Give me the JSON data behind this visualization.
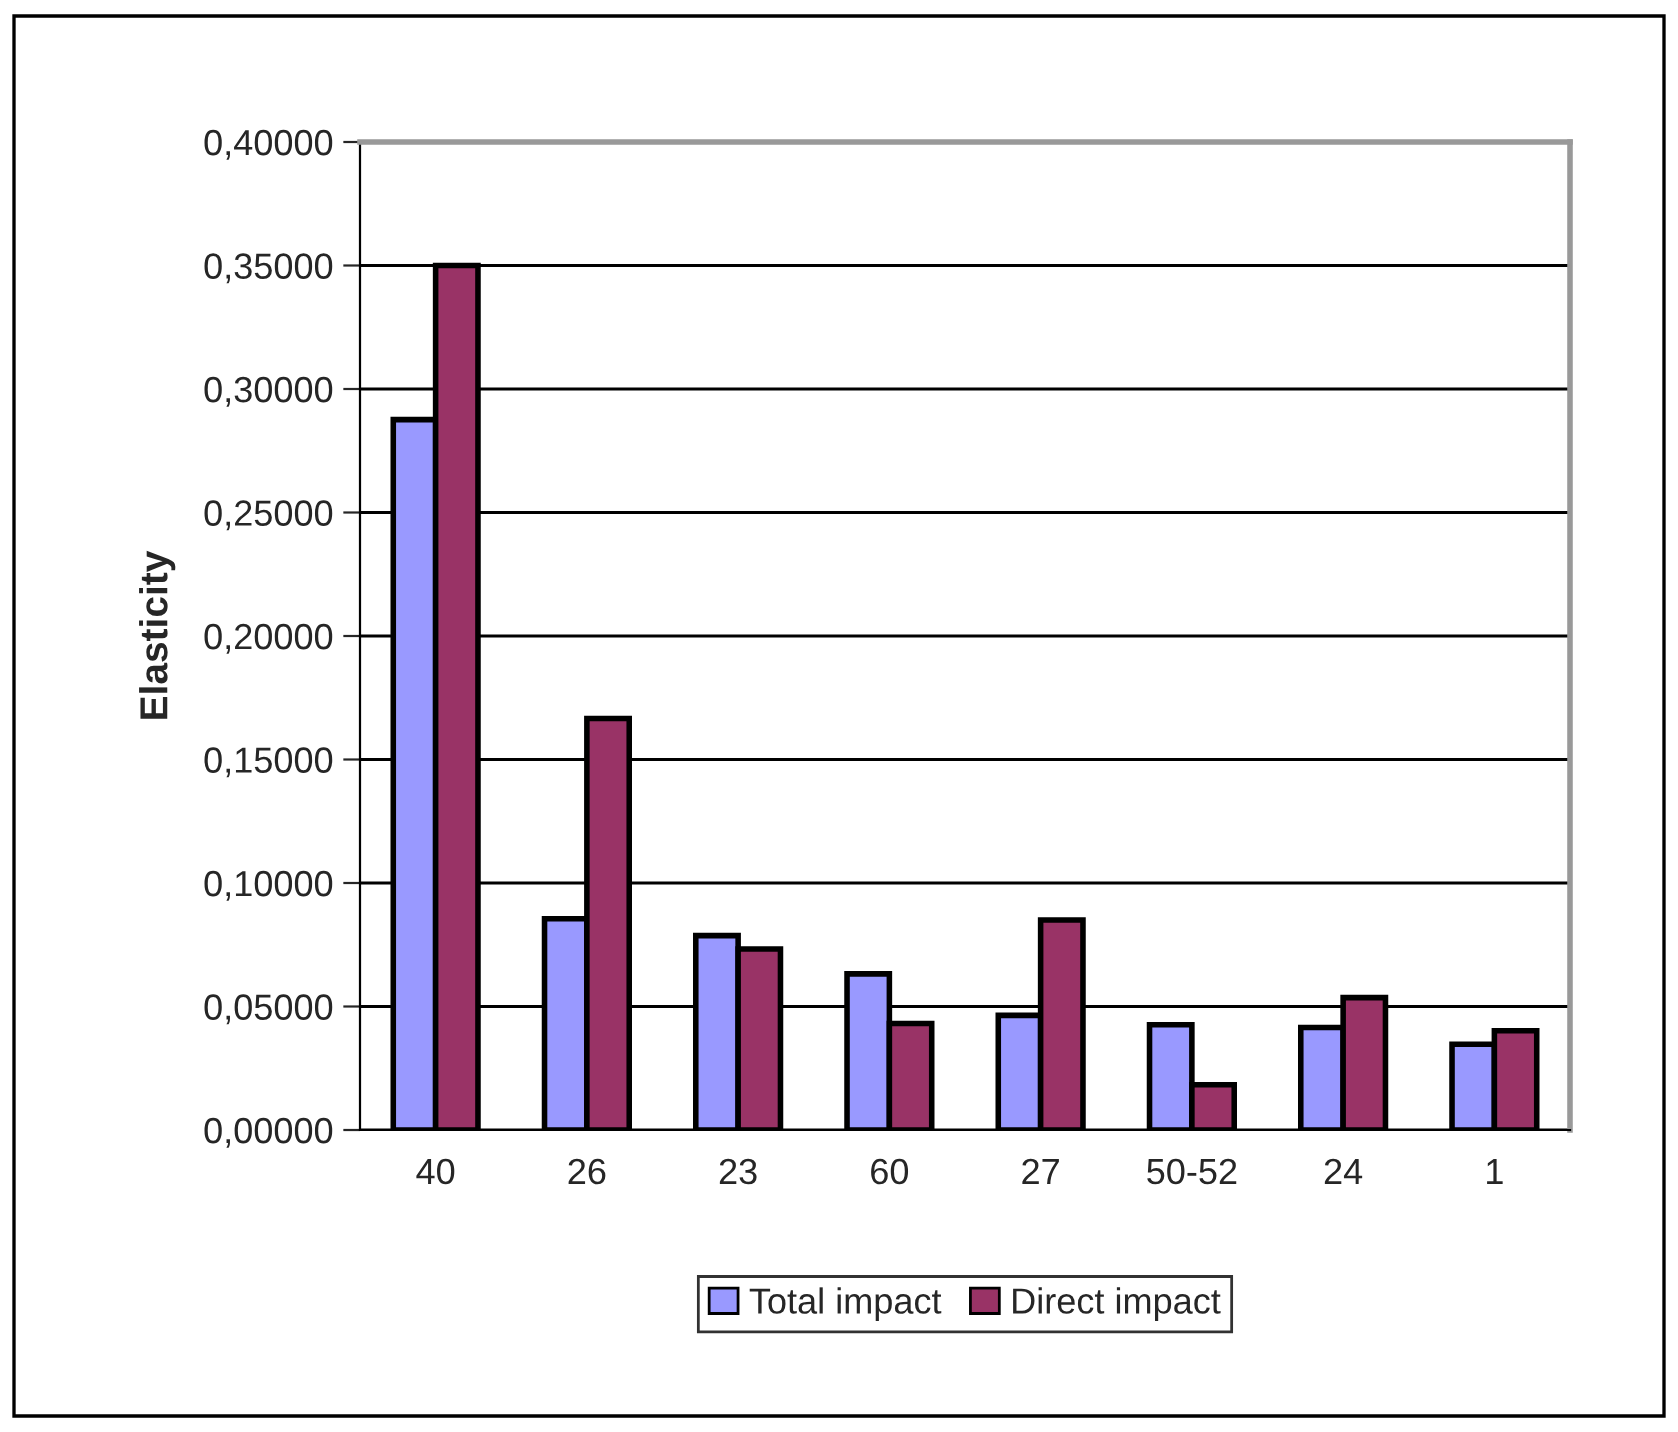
{
  "chart_data": {
    "type": "bar",
    "ylabel": "Elasticity",
    "categories": [
      "40",
      "26",
      "23",
      "60",
      "27",
      "50-52",
      "24",
      "1"
    ],
    "series": [
      {
        "name": "Total impact",
        "color": "#9999ff",
        "values": [
          0.2876,
          0.0855,
          0.0787,
          0.0632,
          0.0464,
          0.0426,
          0.0415,
          0.0347
        ]
      },
      {
        "name": "Direct impact",
        "color": "#993366",
        "values": [
          0.35,
          0.1666,
          0.0733,
          0.0431,
          0.085,
          0.0183,
          0.0536,
          0.0402
        ]
      }
    ],
    "ylim": [
      0,
      0.4
    ],
    "yticks": [
      {
        "value": 0,
        "label": "0,00000"
      },
      {
        "value": 0.05,
        "label": "0,05000"
      },
      {
        "value": 0.1,
        "label": "0,10000"
      },
      {
        "value": 0.15,
        "label": "0,15000"
      },
      {
        "value": 0.2,
        "label": "0,20000"
      },
      {
        "value": 0.25,
        "label": "0,25000"
      },
      {
        "value": 0.3,
        "label": "0,30000"
      },
      {
        "value": 0.35,
        "label": "0,35000"
      },
      {
        "value": 0.4,
        "label": "0,40000"
      }
    ],
    "grid": "y",
    "legend": "bottom"
  }
}
